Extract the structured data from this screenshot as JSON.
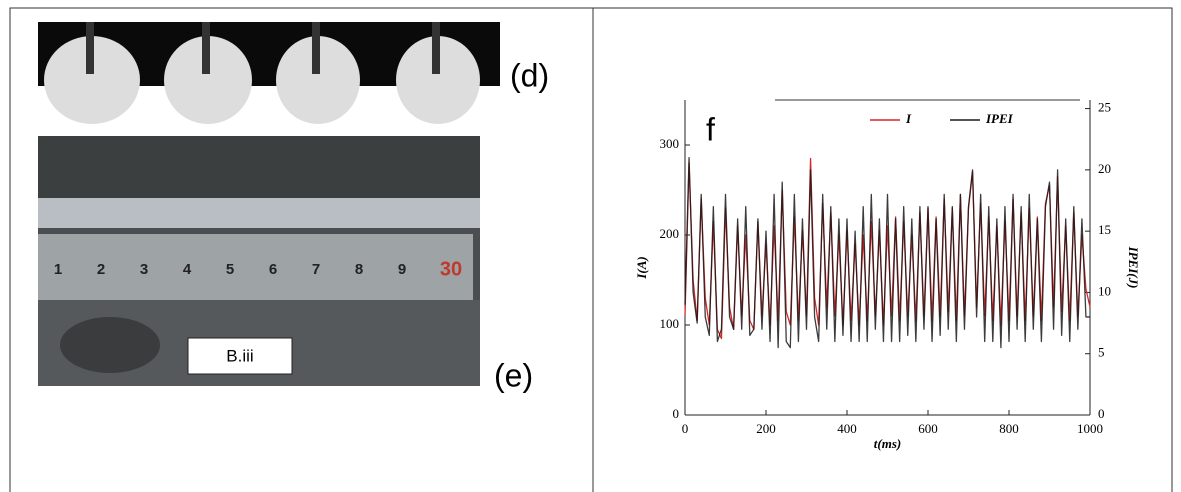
{
  "panels": {
    "d_label": "(d)",
    "e_label": "(e)",
    "ruler": [
      "1",
      "2",
      "3",
      "4",
      "5",
      "6",
      "7",
      "8",
      "9",
      "30"
    ],
    "sample_label": "B.iii",
    "f_label": "f"
  },
  "chart_data": {
    "type": "line",
    "xlabel": "t(ms)",
    "ylabel": "I(A)",
    "y2label": "IPEI(J)",
    "x": [
      0,
      10,
      20,
      30,
      40,
      50,
      60,
      70,
      80,
      90,
      100,
      110,
      120,
      130,
      140,
      150,
      160,
      170,
      180,
      190,
      200,
      210,
      220,
      230,
      240,
      250,
      260,
      270,
      280,
      290,
      300,
      310,
      320,
      330,
      340,
      350,
      360,
      370,
      380,
      390,
      400,
      410,
      420,
      430,
      440,
      450,
      460,
      470,
      480,
      490,
      500,
      510,
      520,
      530,
      540,
      550,
      560,
      570,
      580,
      590,
      600,
      610,
      620,
      630,
      640,
      650,
      660,
      670,
      680,
      690,
      700,
      710,
      720,
      730,
      740,
      750,
      760,
      770,
      780,
      790,
      800,
      810,
      820,
      830,
      840,
      850,
      860,
      870,
      880,
      890,
      900,
      910,
      920,
      930,
      940,
      950,
      960,
      970,
      980,
      990,
      1000
    ],
    "series": [
      {
        "name": "I",
        "color": "#d62728",
        "values": [
          110,
          280,
          150,
          105,
          240,
          130,
          100,
          215,
          95,
          85,
          230,
          120,
          95,
          210,
          110,
          200,
          105,
          95,
          215,
          110,
          190,
          100,
          210,
          105,
          250,
          115,
          100,
          220,
          105,
          205,
          110,
          285,
          130,
          100,
          235,
          120,
          225,
          110,
          200,
          100,
          205,
          105,
          190,
          100,
          200,
          105,
          215,
          110,
          205,
          100,
          210,
          110,
          220,
          105,
          215,
          110,
          200,
          105,
          225,
          110,
          230,
          105,
          220,
          110,
          240,
          115,
          230,
          105,
          245,
          110,
          230,
          270,
          120,
          235,
          110,
          220,
          105,
          210,
          100,
          215,
          105,
          240,
          110,
          225,
          105,
          230,
          110,
          220,
          105,
          235,
          255,
          120,
          265,
          115,
          210,
          105,
          225,
          110,
          200,
          140,
          120
        ]
      },
      {
        "name": "IPEI",
        "color": "#1a1a1a",
        "axis": "y2",
        "values": [
          9,
          21,
          10,
          7.5,
          18,
          8,
          6.5,
          17,
          6,
          7,
          18,
          8,
          7,
          16,
          7,
          17,
          6.5,
          7,
          16,
          7,
          15,
          6,
          18,
          5.5,
          19,
          6,
          5.5,
          18,
          6,
          16,
          7,
          20,
          8,
          6,
          18,
          7,
          17,
          6,
          16,
          6.5,
          16,
          6,
          15,
          6,
          17,
          6,
          18,
          7,
          16,
          6,
          18,
          6,
          16,
          6,
          17,
          6.5,
          16,
          6,
          17,
          7,
          17,
          6,
          16,
          6.5,
          18,
          7,
          17,
          6,
          18,
          7,
          17,
          20,
          8,
          18,
          6,
          17,
          6,
          16,
          5.5,
          17,
          6,
          18,
          7,
          17,
          6,
          18,
          7,
          16,
          6,
          17,
          19,
          7,
          20,
          6.5,
          16,
          6,
          17,
          7,
          16,
          8,
          8
        ]
      }
    ],
    "xlim": [
      0,
      1000
    ],
    "xticks": [
      0,
      200,
      400,
      600,
      800,
      1000
    ],
    "ylim": [
      0,
      350
    ],
    "yticks": [
      0,
      100,
      200,
      300
    ],
    "y2lim": [
      0,
      25.7
    ],
    "y2ticks": [
      0,
      5,
      10,
      15,
      20,
      25
    ],
    "legend": "upper right"
  }
}
